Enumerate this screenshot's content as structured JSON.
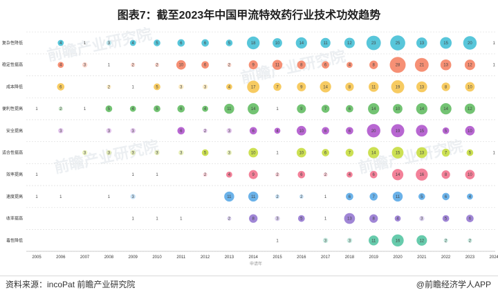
{
  "title": "图表7：截至2023年中国甲流特效药行业技术功效趋势",
  "source": "资料来源：incoPat 前瞻产业研究院",
  "brand": "@前瞻经济学人APP",
  "watermark": "前瞻产业研究院",
  "colors": {
    "row_colors": [
      "#4fc3d8",
      "#f58a6e",
      "#f7c85a",
      "#6cc06c",
      "#b45fd0",
      "#c9de4a",
      "#f27a93",
      "#63aee8",
      "#9b7fd4",
      "#5fc8a8"
    ]
  },
  "chart_data": {
    "type": "bubble",
    "title": "图表7：截至2023年中国甲流特效药行业技术功效趋势",
    "xlabel": "申请年",
    "x": [
      "2005",
      "2006",
      "2007",
      "2008",
      "2009",
      "2010",
      "2011",
      "2012",
      "2013",
      "2014",
      "2015",
      "2016",
      "2017",
      "2018",
      "2019",
      "2020",
      "2021",
      "2022",
      "2023",
      "2024"
    ],
    "categories": [
      "复杂性降低",
      "稳定性提高",
      "成本降低",
      "便利性提高",
      "安全提高",
      "适合性提高",
      "效率提高",
      "速度提高",
      "收率提高",
      "毒性降低"
    ],
    "grid": true,
    "series": [
      {
        "name": "复杂性降低",
        "values": [
          null,
          4,
          1,
          3,
          4,
          5,
          6,
          6,
          5,
          18,
          10,
          14,
          11,
          12,
          23,
          25,
          13,
          15,
          20,
          1
        ]
      },
      {
        "name": "稳定性提高",
        "values": [
          null,
          4,
          3,
          1,
          2,
          2,
          10,
          6,
          2,
          9,
          11,
          8,
          6,
          4,
          8,
          28,
          21,
          13,
          12,
          1
        ]
      },
      {
        "name": "成本降低",
        "values": [
          null,
          6,
          null,
          2,
          1,
          5,
          3,
          3,
          4,
          17,
          7,
          9,
          14,
          8,
          11,
          19,
          13,
          8,
          10,
          null
        ]
      },
      {
        "name": "便利性提高",
        "values": [
          1,
          2,
          1,
          5,
          4,
          5,
          6,
          4,
          11,
          14,
          1,
          9,
          7,
          6,
          14,
          10,
          14,
          14,
          12,
          null
        ]
      },
      {
        "name": "安全提高",
        "values": [
          null,
          3,
          null,
          3,
          3,
          null,
          6,
          2,
          3,
          6,
          4,
          10,
          6,
          6,
          20,
          19,
          15,
          5,
          10,
          null
        ]
      },
      {
        "name": "适合性提高",
        "values": [
          null,
          null,
          3,
          3,
          3,
          3,
          3,
          5,
          3,
          10,
          1,
          10,
          6,
          7,
          14,
          15,
          13,
          7,
          5,
          1
        ]
      },
      {
        "name": "效率提高",
        "values": [
          1,
          null,
          null,
          null,
          1,
          1,
          null,
          2,
          4,
          9,
          2,
          6,
          2,
          4,
          6,
          14,
          16,
          8,
          10,
          null
        ]
      },
      {
        "name": "速度提高",
        "values": [
          1,
          1,
          null,
          1,
          3,
          null,
          null,
          null,
          11,
          11,
          2,
          2,
          1,
          6,
          7,
          11,
          5,
          6,
          4,
          null
        ]
      },
      {
        "name": "收率提高",
        "values": [
          null,
          null,
          null,
          null,
          1,
          1,
          1,
          null,
          2,
          8,
          3,
          5,
          1,
          13,
          8,
          4,
          3,
          5,
          6,
          null
        ]
      },
      {
        "name": "毒性降低",
        "values": [
          null,
          null,
          null,
          null,
          null,
          null,
          null,
          null,
          null,
          null,
          1,
          null,
          3,
          3,
          11,
          16,
          12,
          2,
          2,
          null
        ]
      }
    ]
  }
}
